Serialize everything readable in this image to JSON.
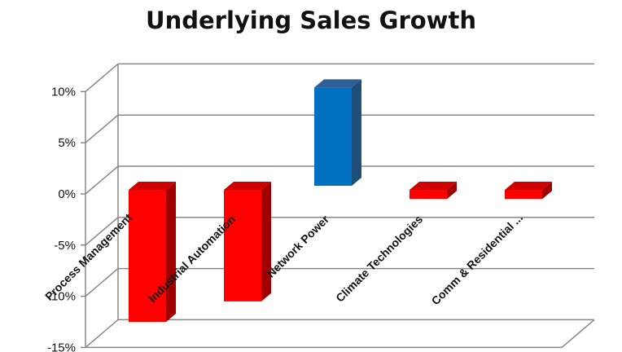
{
  "chart_data": {
    "type": "bar",
    "title": "Underlying Sales Growth",
    "categories": [
      "Process Management",
      "Industrial Automation",
      "Network Power",
      "Climate Technologies",
      "Comm & Residential ..."
    ],
    "values": [
      -12.5,
      -10.5,
      10.0,
      -0.5,
      -0.5
    ],
    "ylim": [
      -15,
      10
    ],
    "yticks": [
      10,
      5,
      0,
      -5,
      -10,
      -15
    ],
    "ytick_labels": [
      "10%",
      "5%",
      "0%",
      "-5%",
      "-10%",
      "-15%"
    ],
    "xlabel": "",
    "ylabel": "",
    "grid": true,
    "legend": "none",
    "colors": {
      "negative": "#ff0000",
      "negative_side": "#a00000",
      "negative_top": "#d00000",
      "positive": "#0070c0",
      "positive_side": "#1f4e79",
      "positive_top": "#2f5f95",
      "grid": "#888888"
    }
  }
}
